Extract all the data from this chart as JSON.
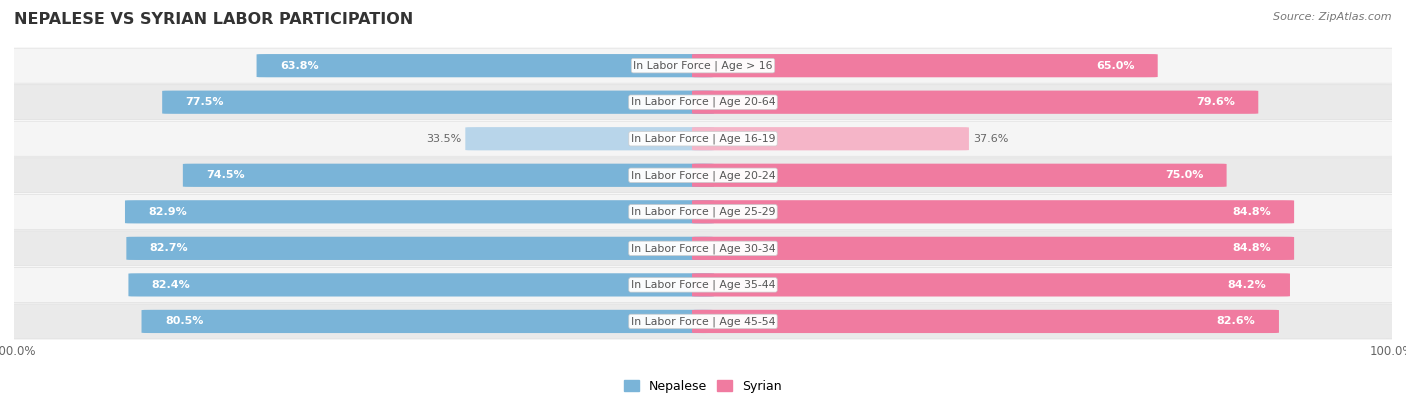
{
  "title": "NEPALESE VS SYRIAN LABOR PARTICIPATION",
  "source": "Source: ZipAtlas.com",
  "categories": [
    "In Labor Force | Age > 16",
    "In Labor Force | Age 20-64",
    "In Labor Force | Age 16-19",
    "In Labor Force | Age 20-24",
    "In Labor Force | Age 25-29",
    "In Labor Force | Age 30-34",
    "In Labor Force | Age 35-44",
    "In Labor Force | Age 45-54"
  ],
  "nepalese": [
    63.8,
    77.5,
    33.5,
    74.5,
    82.9,
    82.7,
    82.4,
    80.5
  ],
  "syrian": [
    65.0,
    79.6,
    37.6,
    75.0,
    84.8,
    84.8,
    84.2,
    82.6
  ],
  "nepalese_color": "#7ab4d8",
  "nepalese_color_light": "#b8d5ea",
  "syrian_color": "#f07ba0",
  "syrian_color_light": "#f5b5c8",
  "row_bg_even": "#f5f5f5",
  "row_bg_odd": "#eaeaea",
  "label_white": "#ffffff",
  "label_dark": "#666666",
  "center_label_color": "#555555",
  "center_box_color": "#ffffff",
  "center_box_edge": "#cccccc",
  "bg_color": "#ffffff",
  "figsize": [
    14.06,
    3.95
  ],
  "dpi": 100
}
